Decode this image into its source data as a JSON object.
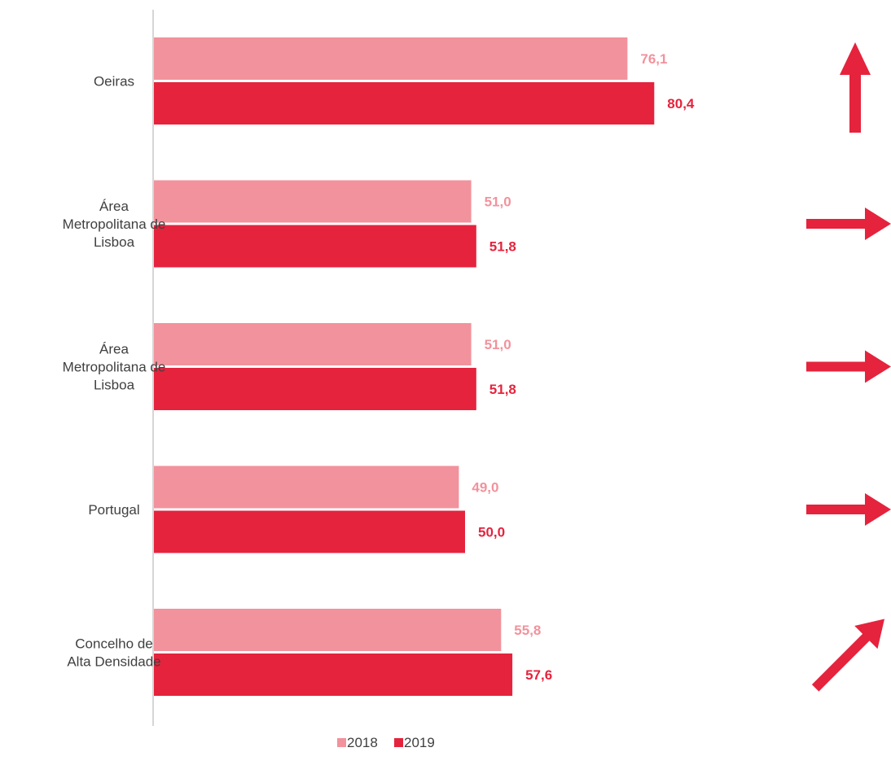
{
  "chart_data": {
    "type": "bar",
    "orientation": "horizontal",
    "categories": [
      [
        "Oeiras"
      ],
      [
        "Área",
        "Metropolitana de",
        "Lisboa"
      ],
      [
        "Área",
        "Metropolitana de",
        "Lisboa"
      ],
      [
        "Portugal"
      ],
      [
        "Concelho de",
        "Alta Densidade"
      ]
    ],
    "series": [
      {
        "name": "2018",
        "color": "#f2929c",
        "values": [
          76.1,
          51.0,
          51.0,
          49.0,
          55.8
        ],
        "labels": [
          "76,1",
          "51,0",
          "51,0",
          "49,0",
          "55,8"
        ]
      },
      {
        "name": "2019",
        "color": "#e5233d",
        "values": [
          80.4,
          51.8,
          51.8,
          50.0,
          57.6
        ],
        "labels": [
          "80,4",
          "51,8",
          "51,8",
          "50,0",
          "57,6"
        ]
      }
    ],
    "trend_icons": [
      "arrow-up-icon",
      "arrow-right-icon",
      "arrow-right-icon",
      "arrow-right-icon",
      "arrow-up-right-icon"
    ],
    "trend_color": "#e5233d",
    "xlim": [
      0,
      100
    ],
    "grid": false,
    "legend_position": "bottom"
  }
}
